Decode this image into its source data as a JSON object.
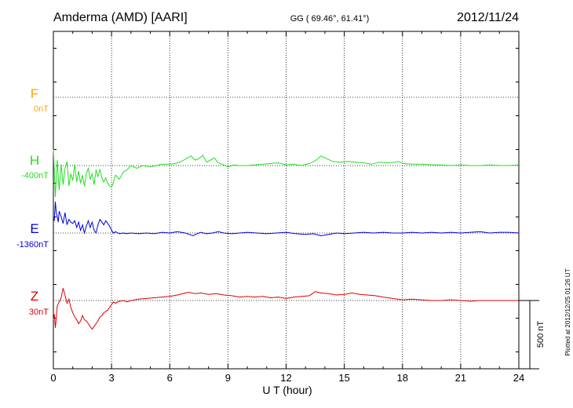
{
  "header": {
    "station": "Amderma (AMD)  [AARI]",
    "coords": "GG ( 69.46°,  61.41°)",
    "date": "2012/11/24"
  },
  "plotted_note": "Plotted at 2012/12/25 01:26 UT",
  "scale_label": "500 nT",
  "colors": {
    "F": "#ffa500",
    "H": "#22e022",
    "E": "#0000dd",
    "Z": "#dd0000",
    "frame": "#000000",
    "grid": "#000000"
  },
  "chart_data": {
    "type": "line",
    "title": "Amderma (AMD)  [AARI]",
    "xlabel": "U T (hour)",
    "xlim": [
      0,
      24
    ],
    "xticks": [
      "0",
      "3",
      "6",
      "9",
      "12",
      "15",
      "18",
      "21",
      "24"
    ],
    "grid": true,
    "scale_bar_nT": 500,
    "series": [
      {
        "name": "F",
        "baseline_label": "0nT",
        "baseline_nT": 0,
        "points": []
      },
      {
        "name": "H",
        "baseline_label": "-400nT",
        "baseline_nT": -400,
        "points": [
          [
            0.0,
            120
          ],
          [
            0.1,
            -230
          ],
          [
            0.2,
            40
          ],
          [
            0.3,
            -180
          ],
          [
            0.4,
            10
          ],
          [
            0.5,
            -140
          ],
          [
            0.6,
            -20
          ],
          [
            0.7,
            30
          ],
          [
            0.8,
            -150
          ],
          [
            0.9,
            -60
          ],
          [
            1.0,
            -110
          ],
          [
            1.1,
            10
          ],
          [
            1.2,
            -120
          ],
          [
            1.3,
            -40
          ],
          [
            1.4,
            -130
          ],
          [
            1.5,
            -70
          ],
          [
            1.6,
            -150
          ],
          [
            1.7,
            -60
          ],
          [
            1.8,
            -20
          ],
          [
            1.9,
            -100
          ],
          [
            2.0,
            -60
          ],
          [
            2.1,
            -140
          ],
          [
            2.2,
            -30
          ],
          [
            2.3,
            -80
          ],
          [
            2.4,
            -30
          ],
          [
            2.5,
            -90
          ],
          [
            2.6,
            -120
          ],
          [
            2.7,
            -90
          ],
          [
            2.8,
            -130
          ],
          [
            2.9,
            -150
          ],
          [
            3.0,
            -160
          ],
          [
            3.1,
            -120
          ],
          [
            3.2,
            -70
          ],
          [
            3.4,
            -100
          ],
          [
            3.6,
            -50
          ],
          [
            3.8,
            -30
          ],
          [
            4.0,
            0
          ],
          [
            4.3,
            -20
          ],
          [
            4.6,
            0
          ],
          [
            5.0,
            -10
          ],
          [
            5.3,
            0
          ],
          [
            5.6,
            10
          ],
          [
            6.0,
            10
          ],
          [
            6.3,
            15
          ],
          [
            6.6,
            30
          ],
          [
            6.9,
            55
          ],
          [
            7.1,
            70
          ],
          [
            7.3,
            40
          ],
          [
            7.5,
            50
          ],
          [
            7.7,
            75
          ],
          [
            7.9,
            25
          ],
          [
            8.1,
            40
          ],
          [
            8.3,
            55
          ],
          [
            8.5,
            20
          ],
          [
            8.7,
            10
          ],
          [
            9.0,
            -10
          ],
          [
            9.3,
            5
          ],
          [
            9.6,
            0
          ],
          [
            10.0,
            0
          ],
          [
            10.4,
            5
          ],
          [
            10.8,
            10
          ],
          [
            11.2,
            15
          ],
          [
            11.6,
            20
          ],
          [
            12.0,
            5
          ],
          [
            12.4,
            10
          ],
          [
            12.8,
            0
          ],
          [
            13.2,
            15
          ],
          [
            13.5,
            35
          ],
          [
            13.8,
            70
          ],
          [
            14.1,
            50
          ],
          [
            14.4,
            30
          ],
          [
            14.8,
            25
          ],
          [
            15.2,
            30
          ],
          [
            15.6,
            25
          ],
          [
            16.0,
            20
          ],
          [
            16.4,
            10
          ],
          [
            16.8,
            25
          ],
          [
            17.2,
            20
          ],
          [
            17.6,
            25
          ],
          [
            17.8,
            30
          ],
          [
            18.0,
            15
          ],
          [
            18.5,
            10
          ],
          [
            19.0,
            10
          ],
          [
            19.5,
            5
          ],
          [
            20.0,
            5
          ],
          [
            20.5,
            0
          ],
          [
            21.0,
            5
          ],
          [
            21.5,
            0
          ],
          [
            22.0,
            0
          ],
          [
            22.5,
            5
          ],
          [
            23.0,
            0
          ],
          [
            23.5,
            0
          ],
          [
            24.0,
            5
          ]
        ]
      },
      {
        "name": "E",
        "baseline_label": "-1360nT",
        "baseline_nT": -1360,
        "points": [
          [
            0.0,
            110
          ],
          [
            0.05,
            90
          ],
          [
            0.1,
            230
          ],
          [
            0.15,
            150
          ],
          [
            0.2,
            120
          ],
          [
            0.25,
            80
          ],
          [
            0.3,
            160
          ],
          [
            0.4,
            120
          ],
          [
            0.5,
            70
          ],
          [
            0.6,
            150
          ],
          [
            0.7,
            60
          ],
          [
            0.8,
            100
          ],
          [
            0.9,
            80
          ],
          [
            1.0,
            70
          ],
          [
            1.1,
            90
          ],
          [
            1.2,
            40
          ],
          [
            1.3,
            80
          ],
          [
            1.4,
            20
          ],
          [
            1.5,
            60
          ],
          [
            1.6,
            0
          ],
          [
            1.7,
            50
          ],
          [
            1.8,
            90
          ],
          [
            1.9,
            40
          ],
          [
            2.0,
            80
          ],
          [
            2.1,
            20
          ],
          [
            2.2,
            0
          ],
          [
            2.3,
            60
          ],
          [
            2.4,
            100
          ],
          [
            2.5,
            80
          ],
          [
            2.6,
            60
          ],
          [
            2.7,
            90
          ],
          [
            2.8,
            70
          ],
          [
            2.9,
            50
          ],
          [
            3.0,
            20
          ],
          [
            3.1,
            0
          ],
          [
            3.2,
            10
          ],
          [
            3.4,
            -5
          ],
          [
            3.6,
            0
          ],
          [
            3.8,
            -5
          ],
          [
            4.0,
            0
          ],
          [
            4.4,
            -5
          ],
          [
            4.8,
            0
          ],
          [
            5.2,
            -5
          ],
          [
            5.6,
            5
          ],
          [
            6.0,
            0
          ],
          [
            6.4,
            10
          ],
          [
            6.8,
            0
          ],
          [
            7.0,
            -10
          ],
          [
            7.2,
            -20
          ],
          [
            7.4,
            -5
          ],
          [
            7.6,
            5
          ],
          [
            7.9,
            -5
          ],
          [
            8.2,
            0
          ],
          [
            8.5,
            10
          ],
          [
            8.8,
            0
          ],
          [
            9.2,
            -5
          ],
          [
            9.6,
            0
          ],
          [
            10.0,
            5
          ],
          [
            10.5,
            0
          ],
          [
            11.0,
            -5
          ],
          [
            11.5,
            0
          ],
          [
            12.0,
            5
          ],
          [
            12.5,
            -5
          ],
          [
            13.0,
            -10
          ],
          [
            13.4,
            -5
          ],
          [
            13.8,
            -20
          ],
          [
            14.2,
            -10
          ],
          [
            14.6,
            0
          ],
          [
            15.0,
            -5
          ],
          [
            15.5,
            0
          ],
          [
            16.0,
            5
          ],
          [
            16.5,
            0
          ],
          [
            17.0,
            5
          ],
          [
            17.5,
            0
          ],
          [
            18.0,
            0
          ],
          [
            18.5,
            5
          ],
          [
            19.0,
            0
          ],
          [
            19.5,
            5
          ],
          [
            20.0,
            0
          ],
          [
            20.5,
            5
          ],
          [
            21.0,
            0
          ],
          [
            21.5,
            5
          ],
          [
            22.0,
            10
          ],
          [
            22.5,
            0
          ],
          [
            23.0,
            5
          ],
          [
            23.5,
            5
          ],
          [
            24.0,
            0
          ]
        ]
      },
      {
        "name": "Z",
        "baseline_label": "30nT",
        "baseline_nT": 30,
        "points": [
          [
            0.0,
            -140
          ],
          [
            0.05,
            -100
          ],
          [
            0.1,
            -200
          ],
          [
            0.15,
            -130
          ],
          [
            0.2,
            -40
          ],
          [
            0.3,
            -10
          ],
          [
            0.4,
            20
          ],
          [
            0.5,
            90
          ],
          [
            0.6,
            40
          ],
          [
            0.7,
            -20
          ],
          [
            0.8,
            10
          ],
          [
            0.9,
            -50
          ],
          [
            1.0,
            -90
          ],
          [
            1.1,
            -120
          ],
          [
            1.2,
            -140
          ],
          [
            1.3,
            -170
          ],
          [
            1.4,
            -150
          ],
          [
            1.5,
            -110
          ],
          [
            1.6,
            -140
          ],
          [
            1.7,
            -150
          ],
          [
            1.8,
            -170
          ],
          [
            1.9,
            -190
          ],
          [
            2.0,
            -210
          ],
          [
            2.1,
            -190
          ],
          [
            2.2,
            -170
          ],
          [
            2.3,
            -150
          ],
          [
            2.4,
            -120
          ],
          [
            2.5,
            -110
          ],
          [
            2.6,
            -90
          ],
          [
            2.7,
            -80
          ],
          [
            2.8,
            -70
          ],
          [
            2.9,
            -50
          ],
          [
            3.0,
            -30
          ],
          [
            3.1,
            -10
          ],
          [
            3.2,
            -20
          ],
          [
            3.4,
            -5
          ],
          [
            3.6,
            0
          ],
          [
            3.8,
            -10
          ],
          [
            4.0,
            0
          ],
          [
            4.4,
            10
          ],
          [
            4.8,
            15
          ],
          [
            5.2,
            20
          ],
          [
            5.6,
            25
          ],
          [
            6.0,
            30
          ],
          [
            6.4,
            40
          ],
          [
            6.8,
            55
          ],
          [
            7.0,
            60
          ],
          [
            7.3,
            50
          ],
          [
            7.6,
            55
          ],
          [
            8.0,
            45
          ],
          [
            8.4,
            50
          ],
          [
            8.8,
            40
          ],
          [
            9.2,
            35
          ],
          [
            9.6,
            25
          ],
          [
            10.0,
            30
          ],
          [
            10.4,
            25
          ],
          [
            10.8,
            30
          ],
          [
            11.2,
            20
          ],
          [
            11.6,
            25
          ],
          [
            12.0,
            15
          ],
          [
            12.4,
            25
          ],
          [
            12.8,
            30
          ],
          [
            13.2,
            35
          ],
          [
            13.5,
            65
          ],
          [
            13.8,
            55
          ],
          [
            14.2,
            50
          ],
          [
            14.6,
            40
          ],
          [
            15.0,
            45
          ],
          [
            15.4,
            55
          ],
          [
            15.8,
            45
          ],
          [
            16.2,
            40
          ],
          [
            16.6,
            35
          ],
          [
            17.0,
            25
          ],
          [
            17.5,
            15
          ],
          [
            18.0,
            5
          ],
          [
            18.5,
            10
          ],
          [
            19.0,
            5
          ],
          [
            19.5,
            0
          ],
          [
            20.0,
            0
          ],
          [
            20.5,
            5
          ],
          [
            21.0,
            0
          ],
          [
            21.5,
            -5
          ],
          [
            22.0,
            0
          ],
          [
            22.5,
            0
          ],
          [
            23.0,
            0
          ],
          [
            23.5,
            0
          ],
          [
            24.0,
            0
          ]
        ]
      }
    ]
  }
}
